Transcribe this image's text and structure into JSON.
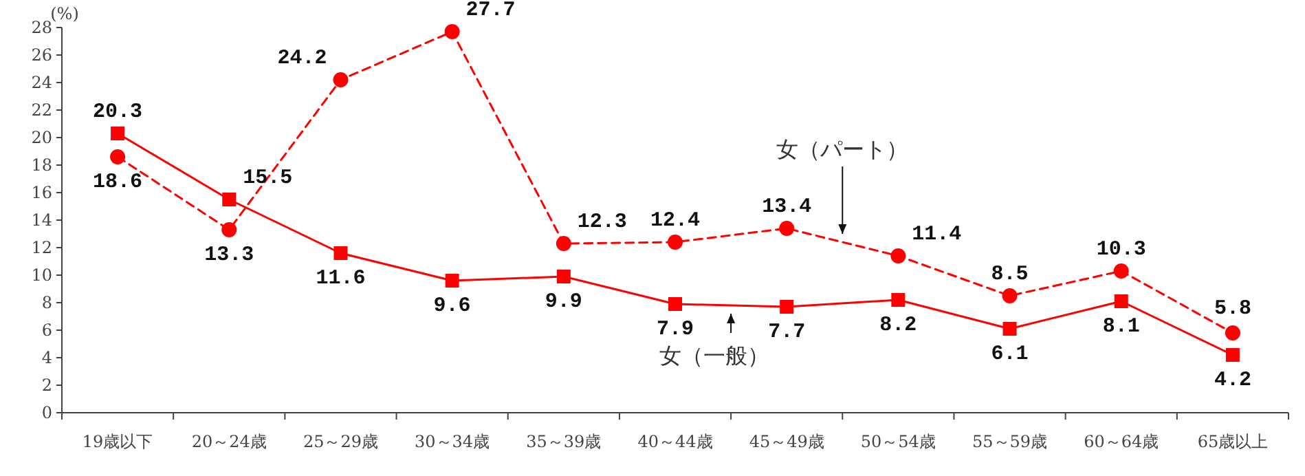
{
  "chart_data": {
    "type": "line",
    "ylabel": "(%)",
    "categories": [
      "19歳以下",
      "20～24歳",
      "25～29歳",
      "30～34歳",
      "35～39歳",
      "40～44歳",
      "45～49歳",
      "50～54歳",
      "55～59歳",
      "60～64歳",
      "65歳以上"
    ],
    "ylim": [
      0,
      28
    ],
    "yticks": [
      0,
      2,
      4,
      6,
      8,
      10,
      12,
      14,
      16,
      18,
      20,
      22,
      24,
      26,
      28
    ],
    "grid": false,
    "legend": false,
    "data_labels": true,
    "series": [
      {
        "name": "女（一般）",
        "color": "#ff0000",
        "marker": "square",
        "line_style": "solid",
        "values": [
          20.3,
          15.5,
          11.6,
          9.6,
          9.9,
          7.9,
          7.7,
          8.2,
          6.1,
          8.1,
          4.2
        ]
      },
      {
        "name": "女（パート）",
        "color": "#ff0000",
        "marker": "circle",
        "line_style": "dashed",
        "values": [
          18.6,
          13.3,
          24.2,
          27.7,
          12.3,
          12.4,
          13.4,
          11.4,
          8.5,
          10.3,
          5.8
        ]
      }
    ]
  }
}
